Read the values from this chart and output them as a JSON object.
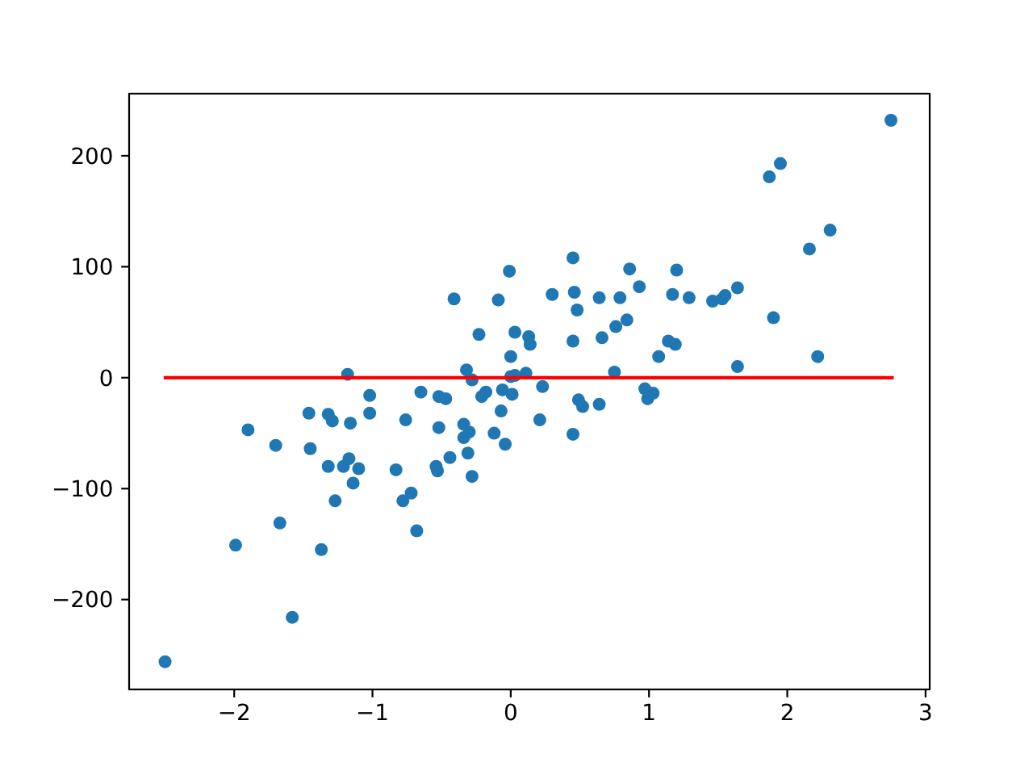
{
  "chart_data": {
    "type": "scatter",
    "xlim": [
      -2.76,
      3.03
    ],
    "ylim": [
      -281,
      256
    ],
    "xticks": [
      {
        "value": -2,
        "label": "−2"
      },
      {
        "value": -1,
        "label": "−1"
      },
      0,
      1,
      2,
      3
    ],
    "yticks": [
      {
        "value": -200,
        "label": "−200"
      },
      {
        "value": -100,
        "label": "−100"
      },
      0,
      100,
      200
    ],
    "series": [
      {
        "color": "#1f77b4",
        "marker": "circle",
        "x": [
          -2.5,
          -1.99,
          -1.9,
          -1.7,
          -1.67,
          -1.58,
          -1.46,
          -1.45,
          -1.37,
          -1.32,
          -1.29,
          -1.32,
          -1.27,
          -1.21,
          -1.18,
          -1.17,
          -1.16,
          -1.14,
          -1.1,
          -1.02,
          -1.02,
          -0.83,
          -0.78,
          -0.76,
          -0.72,
          -0.68,
          -0.65,
          -0.54,
          -0.53,
          -0.52,
          -0.52,
          -0.47,
          -0.44,
          -0.41,
          -0.34,
          -0.34,
          -0.32,
          -0.31,
          -0.3,
          -0.28,
          -0.28,
          -0.23,
          -0.21,
          -0.18,
          -0.12,
          -0.09,
          -0.07,
          -0.06,
          -0.04,
          -0.01,
          0.0,
          0.0,
          0.01,
          0.03,
          0.03,
          0.11,
          0.13,
          0.14,
          0.21,
          0.23,
          0.3,
          0.45,
          0.45,
          0.45,
          0.46,
          0.48,
          0.49,
          0.52,
          0.64,
          0.64,
          0.66,
          0.75,
          0.76,
          0.79,
          0.84,
          0.86,
          0.93,
          0.97,
          0.99,
          1.03,
          1.07,
          1.14,
          1.17,
          1.19,
          1.2,
          1.29,
          1.46,
          1.53,
          1.55,
          1.64,
          1.64,
          1.87,
          1.9,
          1.95,
          2.16,
          2.22,
          2.31,
          2.75
        ],
        "values": [
          -256,
          -151,
          -47,
          -61,
          -131,
          -216,
          -32,
          -64,
          -155,
          -33,
          -39,
          -80,
          -111,
          -80,
          3,
          -73,
          -41,
          -95,
          -82,
          -16,
          -32,
          -83,
          -111,
          -38,
          -104,
          -138,
          -13,
          -80,
          -84,
          -17,
          -45,
          -19,
          -72,
          71,
          -42,
          -54,
          7,
          -68,
          -49,
          -2,
          -89,
          39,
          -17,
          -13,
          -50,
          70,
          -30,
          -11,
          -60,
          96,
          19,
          1,
          -15,
          41,
          2,
          4,
          37,
          30,
          -38,
          -8,
          75,
          108,
          33,
          -51,
          77,
          61,
          -20,
          -26,
          72,
          -24,
          36,
          5,
          46,
          72,
          52,
          98,
          82,
          -10,
          -19,
          -14,
          19,
          33,
          75,
          30,
          97,
          72,
          69,
          71,
          74,
          81,
          10,
          181,
          54,
          193,
          116,
          19,
          133,
          232
        ]
      },
      {
        "type": "line",
        "color": "#ff0000",
        "x": [
          -2.51,
          2.77
        ],
        "values": [
          0,
          0
        ]
      }
    ]
  }
}
